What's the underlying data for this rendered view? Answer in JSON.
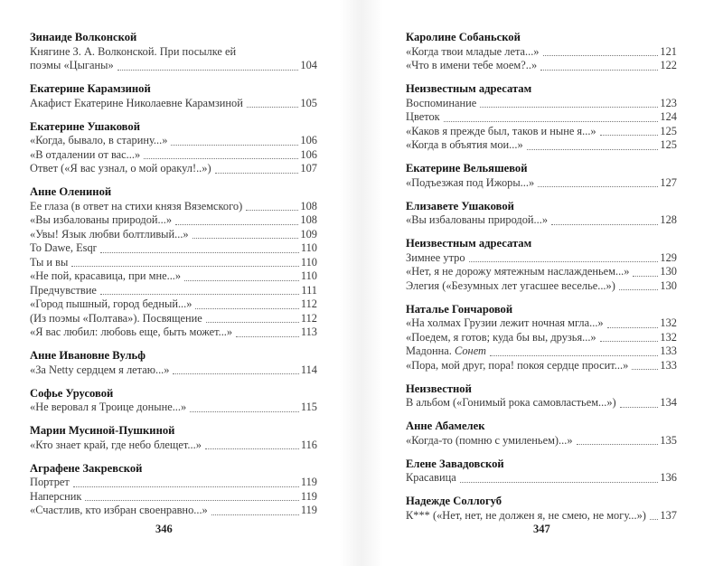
{
  "left_page": {
    "number": "346",
    "sections": [
      {
        "heading": "Зинаиде Волконской",
        "entries": [
          {
            "title_pre": "Княгине З. А. Волконской. При посылке ей",
            "title": "поэмы «Цыганы»",
            "page": "104"
          }
        ]
      },
      {
        "heading": "Екатерине Карамзиной",
        "entries": [
          {
            "title": "Акафист Екатерине Николаевне Карамзиной",
            "page": "105"
          }
        ]
      },
      {
        "heading": "Екатерине Ушаковой",
        "entries": [
          {
            "title": "«Когда, бывало, в старину...»",
            "page": "106"
          },
          {
            "title": "«В отдалении от вас...»",
            "page": "106"
          },
          {
            "title": "Ответ («Я вас узнал, о мой оракул!..»)",
            "page": "107"
          }
        ]
      },
      {
        "heading": "Анне Олениной",
        "entries": [
          {
            "title": "Ее глаза (в ответ на стихи князя Вяземского)",
            "page": "108"
          },
          {
            "title": "«Вы избалованы природой...»",
            "page": "108"
          },
          {
            "title": "«Увы! Язык любви болтливый...»",
            "page": "109"
          },
          {
            "title": "To Dawe, Esqr",
            "page": "110"
          },
          {
            "title": "Ты и вы",
            "page": "110"
          },
          {
            "title": "«Не пой, красавица, при мне...»",
            "page": "110"
          },
          {
            "title": "Предчувствие",
            "page": "111"
          },
          {
            "title": "«Город пышный, город бедный...»",
            "page": "112"
          },
          {
            "title": "(Из поэмы «Полтава»). Посвящение",
            "page": "112"
          },
          {
            "title": "«Я вас любил: любовь еще, быть может...»",
            "page": "113"
          }
        ]
      },
      {
        "heading": "Анне Ивановне Вульф",
        "entries": [
          {
            "title": "«За Netty сердцем я летаю...»",
            "page": "114"
          }
        ]
      },
      {
        "heading": "Софье Урусовой",
        "entries": [
          {
            "title": "«Не веровал я Троице доныне...»",
            "page": "115"
          }
        ]
      },
      {
        "heading": "Марии Мусиной-Пушкиной",
        "entries": [
          {
            "title": "«Кто знает край, где небо блещет...»",
            "page": "116"
          }
        ]
      },
      {
        "heading": "Аграфене Закревской",
        "entries": [
          {
            "title": "Портрет",
            "page": "119"
          },
          {
            "title": "Наперсник",
            "page": "119"
          },
          {
            "title": "«Счастлив, кто избран своенравно...»",
            "page": "119"
          }
        ]
      }
    ]
  },
  "right_page": {
    "number": "347",
    "sections": [
      {
        "heading": "Каролине Собаньской",
        "entries": [
          {
            "title": "«Когда твои младые лета...»",
            "page": "121"
          },
          {
            "title": "«Что в имени тебе моем?..»",
            "page": "122"
          }
        ]
      },
      {
        "heading": "Неизвестным адресатам",
        "entries": [
          {
            "title": "Воспоминание",
            "page": "123"
          },
          {
            "title": "Цветок",
            "page": "124"
          },
          {
            "title": "«Каков я прежде был, таков и ныне я...»",
            "page": "125"
          },
          {
            "title": "«Когда в объятия мои...»",
            "page": "125"
          }
        ]
      },
      {
        "heading": "Екатерине Вельяшевой",
        "entries": [
          {
            "title": "«Подъезжая под Ижоры...»",
            "page": "127"
          }
        ]
      },
      {
        "heading": "Елизавете Ушаковой",
        "entries": [
          {
            "title": "«Вы избалованы природой...»",
            "page": "128"
          }
        ]
      },
      {
        "heading": "Неизвестным адресатам",
        "entries": [
          {
            "title": "Зимнее утро",
            "page": "129"
          },
          {
            "title": "«Нет, я не дорожу мятежным наслажденьем...»",
            "page": "130"
          },
          {
            "title": "Элегия («Безумных лет угасшее веселье...»)",
            "page": "130"
          }
        ]
      },
      {
        "heading": "Наталье Гончаровой",
        "entries": [
          {
            "title": "«На холмах Грузии лежит ночная мгла...»",
            "page": "132"
          },
          {
            "title": "«Поедем, я готов; куда бы вы, друзья...»",
            "page": "132"
          },
          {
            "title": "Мадонна.",
            "title_italic": "Сонет",
            "page": "133"
          },
          {
            "title": "«Пора, мой друг, пора! покоя сердце просит...»",
            "page": "133"
          }
        ]
      },
      {
        "heading": "Неизвестной",
        "entries": [
          {
            "title": "В альбом («Гонимый рока самовластьем...»)",
            "page": "134"
          }
        ]
      },
      {
        "heading": "Анне Абамелек",
        "entries": [
          {
            "title": "«Когда-то (помню с умиленьем)...»",
            "page": "135"
          }
        ]
      },
      {
        "heading": "Елене Завадовской",
        "entries": [
          {
            "title": "Красавица",
            "page": "136"
          }
        ]
      },
      {
        "heading": "Надежде Соллогуб",
        "entries": [
          {
            "title": "К*** («Нет, нет, не должен я, не смею, не могу...»)",
            "page": "137"
          }
        ]
      }
    ]
  }
}
